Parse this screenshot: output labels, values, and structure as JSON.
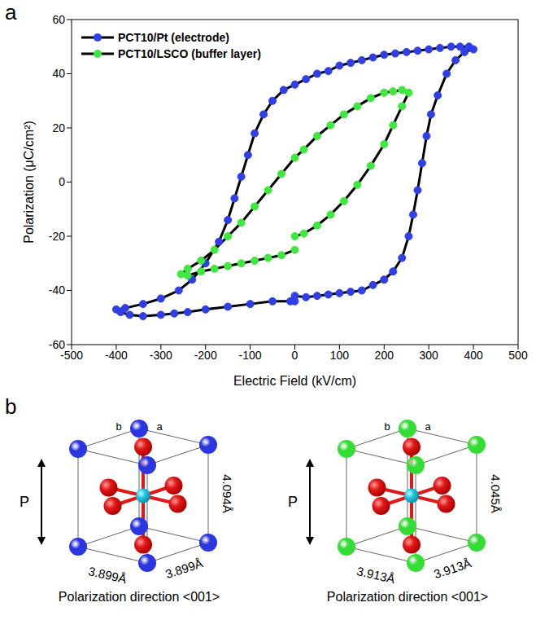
{
  "chart_data": {
    "type": "line",
    "x_label": "Electric Field (kV/cm)",
    "y_label": "Polarization (μC/cm²)",
    "xlim": [
      -500,
      500
    ],
    "xticks": [
      -500,
      -400,
      -300,
      -200,
      -100,
      0,
      100,
      200,
      300,
      400,
      500
    ],
    "ylim": [
      -60,
      60
    ],
    "yticks": [
      -60,
      -40,
      -20,
      0,
      20,
      40,
      60
    ],
    "grid": false,
    "legend": "top-left",
    "series": [
      {
        "name": "PCT10/Pt (electrode)",
        "color": "#2f3fe8",
        "marker": "o",
        "line_style": "solid",
        "x": [
          0,
          25,
          50,
          75,
          100,
          125,
          150,
          175,
          200,
          220,
          240,
          255,
          265,
          275,
          285,
          295,
          305,
          320,
          340,
          360,
          380,
          400,
          390,
          370,
          350,
          325,
          300,
          275,
          250,
          225,
          200,
          175,
          150,
          125,
          100,
          75,
          50,
          25,
          0,
          -25,
          -50,
          -70,
          -90,
          -105,
          -120,
          -135,
          -150,
          -170,
          -200,
          -230,
          -260,
          -300,
          -340,
          -380,
          -400,
          -390,
          -370,
          -340,
          -300,
          -270,
          -240,
          -200,
          -150,
          -100,
          -50,
          -10,
          0
        ],
        "values": [
          -42,
          -42.5,
          -42,
          -41.5,
          -41,
          -40.5,
          -40,
          -38,
          -36,
          -33,
          -28,
          -20,
          -12,
          -3,
          7,
          17,
          25,
          32,
          40,
          45,
          48,
          49,
          50,
          50,
          50,
          49.5,
          49,
          48.5,
          48,
          47.5,
          47,
          46,
          45,
          44,
          43,
          41,
          40,
          38,
          36,
          34,
          30,
          25,
          18,
          10,
          2,
          -6,
          -14,
          -22,
          -30,
          -36,
          -40,
          -43,
          -45,
          -46.5,
          -47,
          -48,
          -49,
          -49.5,
          -49,
          -48.5,
          -48,
          -47,
          -46,
          -45,
          -44,
          -44,
          -44
        ]
      },
      {
        "name": "PCT10/LSCO (buffer layer)",
        "color": "#3ee83e",
        "marker": "o",
        "line_style": "solid",
        "x": [
          0,
          20,
          50,
          80,
          110,
          140,
          170,
          200,
          220,
          240,
          255,
          240,
          220,
          200,
          170,
          140,
          110,
          80,
          50,
          20,
          0,
          -30,
          -60,
          -90,
          -120,
          -150,
          -180,
          -210,
          -240,
          -255,
          -240,
          -210,
          -180,
          -150,
          -120,
          -90,
          -60,
          -30,
          0
        ],
        "values": [
          -20,
          -19,
          -16,
          -12,
          -7,
          -1,
          6,
          14,
          21,
          28,
          33,
          34,
          33.5,
          33,
          31,
          28,
          25,
          21,
          17,
          12,
          9,
          3,
          -3,
          -9,
          -15,
          -20,
          -25,
          -29,
          -32,
          -34,
          -34.5,
          -33,
          -32,
          -31,
          -30,
          -29,
          -28,
          -27,
          -25
        ]
      }
    ]
  },
  "panel_labels": [
    "a",
    "b"
  ],
  "unit_cells": [
    {
      "corner_color": "#2b35e0",
      "polarization_label": "P",
      "c": "4.094Å",
      "a": "3.899Å",
      "b": "3.899Å",
      "axes": [
        "b",
        "a"
      ],
      "caption": "Polarization direction <001>"
    },
    {
      "corner_color": "#33dd33",
      "polarization_label": "P",
      "c": "4.045Å",
      "a": "3.913Å",
      "b": "3.913Å",
      "axes": [
        "b",
        "a"
      ],
      "caption": "Polarization direction <001>"
    }
  ]
}
